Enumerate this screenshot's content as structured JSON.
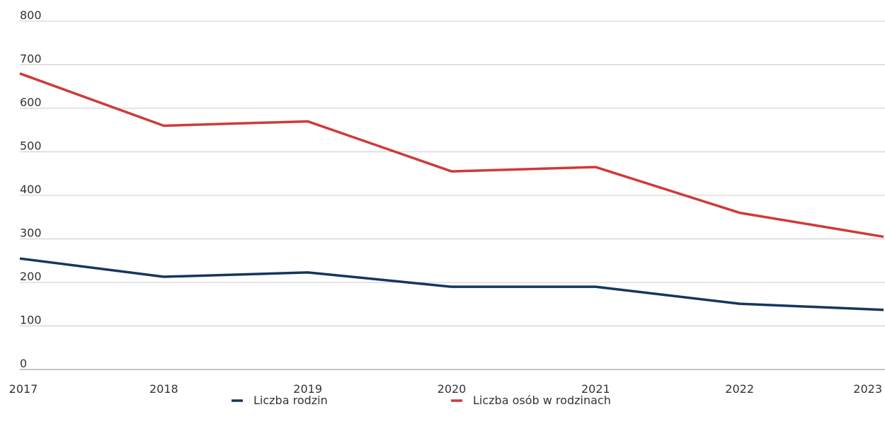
{
  "chart_data": {
    "type": "line",
    "categories": [
      "2017",
      "2018",
      "2019",
      "2020",
      "2021",
      "2022",
      "2023"
    ],
    "series": [
      {
        "name": "Liczba rodzin",
        "color": "#15365f",
        "values": [
          255,
          213,
          223,
          190,
          190,
          151,
          137
        ]
      },
      {
        "name": "Liczba osób w rodzinach",
        "color": "#cf3a3a",
        "values": [
          680,
          560,
          570,
          455,
          465,
          360,
          305
        ]
      }
    ],
    "ylim": [
      0,
      800
    ],
    "yticks": [
      0,
      100,
      200,
      300,
      400,
      500,
      600,
      700,
      800
    ],
    "grid": true,
    "legend": "bottom"
  }
}
